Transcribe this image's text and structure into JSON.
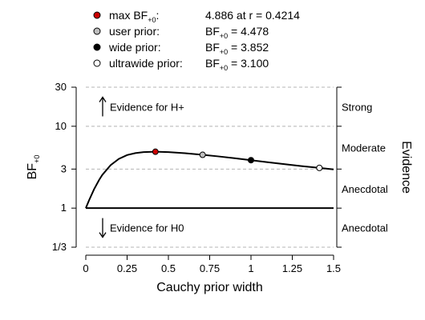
{
  "legend": [
    {
      "label": "max BF",
      "sub": "+0",
      "suffix": ":",
      "value": "4.886 at r = 0.4214",
      "value_sub": "",
      "marker_color": "#cc0000"
    },
    {
      "label": "user prior:",
      "sub": "",
      "suffix": "",
      "value": " = 4.478",
      "value_sub": "+0",
      "value_prefix": "BF",
      "marker_color": "#bfbfbf"
    },
    {
      "label": "wide prior:",
      "sub": "",
      "suffix": "",
      "value": " = 3.852",
      "value_sub": "+0",
      "value_prefix": "BF",
      "marker_color": "#000000"
    },
    {
      "label": "ultrawide prior:",
      "sub": "",
      "suffix": "",
      "value": " = 3.100",
      "value_sub": "+0",
      "value_prefix": "BF",
      "marker_color": "#ffffff"
    }
  ],
  "chart_data": {
    "type": "line",
    "xlabel": "Cauchy prior width",
    "ylabel": "BF",
    "ylabel_sub": "+0",
    "right_label": "Evidence",
    "xlim": [
      0,
      1.5
    ],
    "ylim_log": [
      0.3333,
      30
    ],
    "y_scale": "log",
    "x_ticks": [
      {
        "value": 0,
        "label": "0"
      },
      {
        "value": 0.25,
        "label": "0.25"
      },
      {
        "value": 0.5,
        "label": "0.5"
      },
      {
        "value": 0.75,
        "label": "0.75"
      },
      {
        "value": 1,
        "label": "1"
      },
      {
        "value": 1.25,
        "label": "1.25"
      },
      {
        "value": 1.5,
        "label": "1.5"
      }
    ],
    "y_ticks": [
      {
        "value": 0.3333,
        "label": "1/3"
      },
      {
        "value": 1,
        "label": "1"
      },
      {
        "value": 3,
        "label": "3"
      },
      {
        "value": 10,
        "label": "10"
      },
      {
        "value": 30,
        "label": "30"
      }
    ],
    "gridlines": [
      0.3333,
      3,
      10,
      30
    ],
    "solid_line_at": 1,
    "evidence_labels": [
      {
        "label": "Strong",
        "y_center": 17.3
      },
      {
        "label": "Moderate",
        "y_center": 5.48
      },
      {
        "label": "Anecdotal",
        "y_center": 1.73
      },
      {
        "label": "Anecdotal",
        "y_center": 0.577
      }
    ],
    "annotations": [
      {
        "text": "Evidence for H+",
        "direction": "up",
        "y_center": 17.3
      },
      {
        "text": "Evidence for H0",
        "direction": "down",
        "y_center": 0.577
      }
    ],
    "curve": {
      "x": [
        0,
        0.02,
        0.05,
        0.08,
        0.1,
        0.15,
        0.2,
        0.25,
        0.3,
        0.35,
        0.4214,
        0.5,
        0.6,
        0.7071,
        0.8,
        0.9,
        1.0,
        1.1,
        1.2,
        1.3,
        1.4142,
        1.5
      ],
      "y": [
        1.0,
        1.25,
        1.7,
        2.2,
        2.55,
        3.35,
        4.0,
        4.45,
        4.7,
        4.84,
        4.886,
        4.84,
        4.69,
        4.478,
        4.29,
        4.07,
        3.852,
        3.64,
        3.45,
        3.27,
        3.1,
        2.97
      ]
    },
    "points": [
      {
        "name": "max",
        "x": 0.4214,
        "y": 4.886,
        "fill": "#cc0000"
      },
      {
        "name": "user",
        "x": 0.7071,
        "y": 4.478,
        "fill": "#bfbfbf"
      },
      {
        "name": "wide",
        "x": 1.0,
        "y": 3.852,
        "fill": "#000000"
      },
      {
        "name": "ultrawide",
        "x": 1.4142,
        "y": 3.1,
        "fill": "#ffffff"
      }
    ]
  }
}
